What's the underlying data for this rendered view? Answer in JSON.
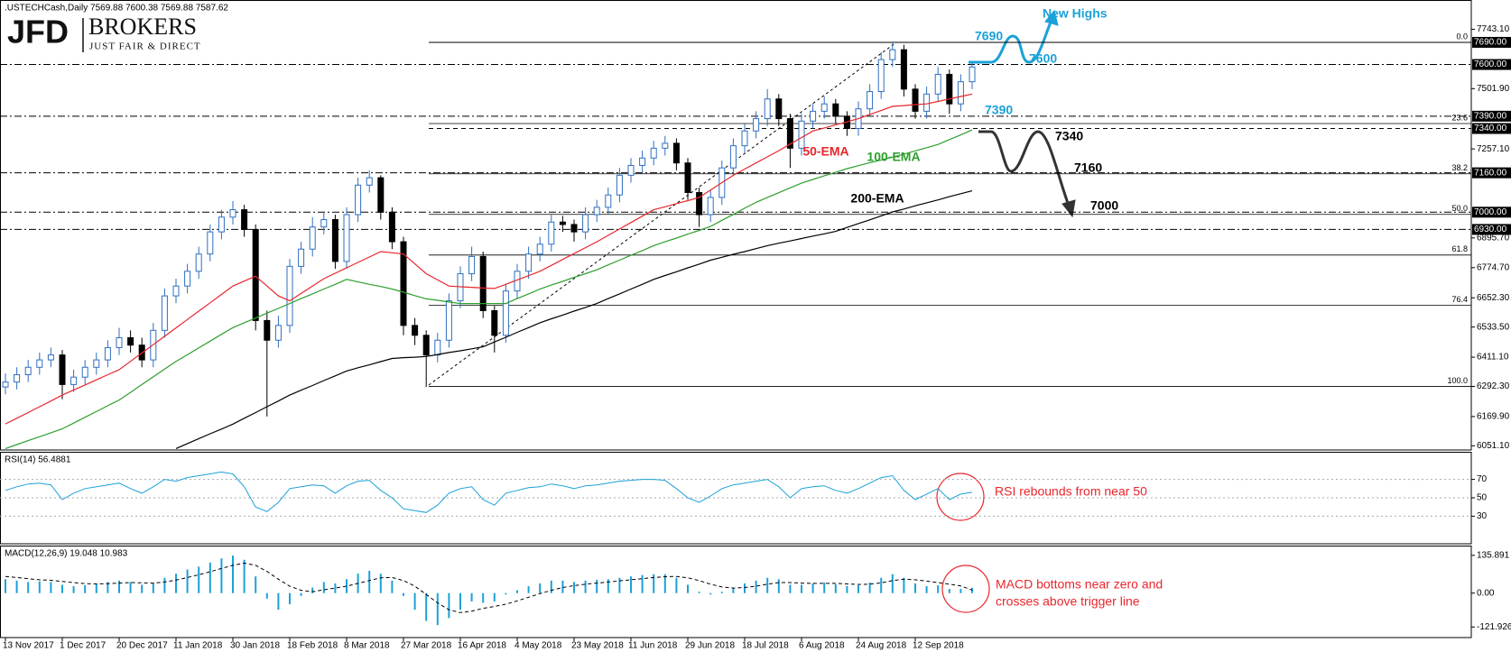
{
  "logo": {
    "mark": "JFD",
    "name": "BROKERS",
    "tagline": "JUST FAIR & DIRECT"
  },
  "chart_data": [
    {
      "type": "candlestick",
      "title": ".USTECHCash,Daily  7569.88 7600.38 7569.88 7587.62",
      "up_color": "#2f6fc0",
      "down_color": "#000000",
      "grid": false,
      "ylim": [
        6034,
        7862
      ],
      "yticks": [
        {
          "value": 7743.1,
          "label": "7743.10"
        },
        {
          "value": 7501.9,
          "label": "7501.90"
        },
        {
          "value": 7257.1,
          "label": "7257.10"
        },
        {
          "value": 6895.7,
          "label": "6895.70"
        },
        {
          "value": 6774.7,
          "label": "6774.70"
        },
        {
          "value": 6652.3,
          "label": "6652.30"
        },
        {
          "value": 6533.5,
          "label": "6533.50"
        },
        {
          "value": 6411.1,
          "label": "6411.10"
        },
        {
          "value": 6292.3,
          "label": "6292.30"
        },
        {
          "value": 6169.9,
          "label": "6169.90"
        },
        {
          "value": 6051.1,
          "label": "6051.10"
        }
      ],
      "categories": [
        "13 Nov 2017",
        null,
        null,
        null,
        null,
        "1 Dec 2017",
        null,
        null,
        null,
        null,
        "20 Dec 2017",
        null,
        null,
        null,
        null,
        "11 Jan 2018",
        null,
        null,
        null,
        null,
        "30 Jan 2018",
        null,
        null,
        null,
        null,
        "18 Feb 2018",
        null,
        null,
        null,
        null,
        "8 Mar 2018",
        null,
        null,
        null,
        null,
        "27 Mar 2018",
        null,
        null,
        null,
        null,
        "16 Apr 2018",
        null,
        null,
        null,
        null,
        "4 May 2018",
        null,
        null,
        null,
        null,
        "23 May 2018",
        null,
        null,
        null,
        null,
        "11 Jun 2018",
        null,
        null,
        null,
        null,
        "29 Jun 2018",
        null,
        null,
        null,
        null,
        "18 Jul 2018",
        null,
        null,
        null,
        null,
        "6 Aug 2018",
        null,
        null,
        null,
        null,
        "24 Aug 2018",
        null,
        null,
        null,
        null,
        "12 Sep 2018",
        null,
        null,
        null,
        null,
        null
      ],
      "open": [
        6290,
        6310,
        6340,
        6370,
        6400,
        6420,
        6300,
        6330,
        6370,
        6400,
        6450,
        6490,
        6460,
        6400,
        6520,
        6660,
        6700,
        6760,
        6830,
        6920,
        6980,
        7010,
        6930,
        6560,
        6480,
        6540,
        6780,
        6850,
        6940,
        6970,
        6800,
        6990,
        7110,
        7140,
        7000,
        6880,
        6540,
        6500,
        6420,
        6480,
        6640,
        6750,
        6820,
        6600,
        6500,
        6680,
        6760,
        6830,
        6870,
        6960,
        6950,
        6920,
        6990,
        7020,
        7070,
        7150,
        7190,
        7220,
        7260,
        7280,
        7200,
        7080,
        6990,
        7060,
        7180,
        7270,
        7330,
        7380,
        7460,
        7380,
        7260,
        7370,
        7410,
        7440,
        7390,
        7340,
        7420,
        7490,
        7620,
        7660,
        7500,
        7410,
        7480,
        7560,
        7440,
        7530
      ],
      "high": [
        6345,
        6370,
        6400,
        6430,
        6450,
        6440,
        6360,
        6400,
        6430,
        6480,
        6530,
        6520,
        6490,
        6550,
        6690,
        6730,
        6790,
        6860,
        6950,
        7010,
        7045,
        7030,
        6950,
        6600,
        6580,
        6810,
        6880,
        6980,
        7000,
        6990,
        7020,
        7140,
        7170,
        7150,
        7020,
        6900,
        6570,
        6520,
        6510,
        6670,
        6780,
        6860,
        6840,
        6620,
        6710,
        6790,
        6860,
        6900,
        6990,
        6985,
        6970,
        7020,
        7050,
        7100,
        7180,
        7220,
        7250,
        7290,
        7310,
        7300,
        7220,
        7100,
        7090,
        7210,
        7300,
        7360,
        7410,
        7500,
        7480,
        7400,
        7400,
        7440,
        7470,
        7460,
        7410,
        7450,
        7520,
        7650,
        7690,
        7680,
        7520,
        7510,
        7590,
        7580,
        7560,
        7605
      ],
      "low": [
        6260,
        6280,
        6310,
        6340,
        6370,
        6240,
        6270,
        6300,
        6340,
        6370,
        6420,
        6430,
        6370,
        6370,
        6490,
        6630,
        6670,
        6730,
        6800,
        6890,
        6950,
        6900,
        6520,
        6170,
        6450,
        6510,
        6750,
        6820,
        6910,
        6770,
        6770,
        6960,
        7080,
        6970,
        6850,
        6500,
        6460,
        6290,
        6390,
        6450,
        6610,
        6720,
        6570,
        6430,
        6470,
        6650,
        6730,
        6800,
        6840,
        6920,
        6880,
        6890,
        6960,
        6990,
        7040,
        7120,
        7160,
        7190,
        7230,
        7170,
        7050,
        6940,
        6960,
        7030,
        7150,
        7240,
        7300,
        7350,
        7350,
        7180,
        7230,
        7340,
        7380,
        7360,
        7310,
        7310,
        7390,
        7460,
        7590,
        7470,
        7380,
        7380,
        7450,
        7400,
        7410,
        7500
      ],
      "close": [
        6310,
        6340,
        6370,
        6400,
        6420,
        6300,
        6330,
        6370,
        6400,
        6450,
        6490,
        6460,
        6400,
        6520,
        6660,
        6700,
        6760,
        6830,
        6920,
        6980,
        7010,
        6930,
        6560,
        6480,
        6540,
        6780,
        6850,
        6940,
        6970,
        6800,
        6990,
        7110,
        7140,
        7000,
        6880,
        6540,
        6500,
        6420,
        6480,
        6640,
        6750,
        6820,
        6600,
        6500,
        6680,
        6760,
        6830,
        6870,
        6960,
        6950,
        6920,
        6990,
        7020,
        7070,
        7150,
        7190,
        7220,
        7260,
        7280,
        7200,
        7080,
        6990,
        7060,
        7180,
        7270,
        7330,
        7380,
        7460,
        7380,
        7260,
        7370,
        7410,
        7440,
        7390,
        7340,
        7420,
        7490,
        7620,
        7660,
        7500,
        7410,
        7480,
        7560,
        7440,
        7530,
        7590
      ],
      "series": [
        {
          "name": "50-EMA",
          "color": "#e8262c",
          "values": [
            6140,
            6163,
            6186,
            6210,
            6233,
            6257,
            6278,
            6298,
            6319,
            6340,
            6360,
            6394,
            6428,
            6462,
            6496,
            6530,
            6564,
            6598,
            6632,
            6666,
            6700,
            6720,
            6740,
            6700,
            6660,
            6640,
            6670,
            6700,
            6730,
            6752,
            6774,
            6796,
            6818,
            6840,
            6835,
            6830,
            6790,
            6750,
            6725,
            6700,
            6697,
            6695,
            6692,
            6690,
            6707,
            6725,
            6742,
            6760,
            6784,
            6808,
            6832,
            6856,
            6880,
            6906,
            6932,
            6958,
            6984,
            7010,
            7022,
            7035,
            7047,
            7060,
            7090,
            7120,
            7150,
            7175,
            7200,
            7225,
            7250,
            7277,
            7303,
            7330,
            7342,
            7355,
            7367,
            7380,
            7397,
            7413,
            7430,
            7433,
            7437,
            7440,
            7450,
            7460,
            7470,
            7480
          ]
        },
        {
          "name": "100-EMA",
          "color": "#2e9e2e",
          "values": [
            6040,
            6056,
            6072,
            6088,
            6104,
            6120,
            6143,
            6167,
            6190,
            6214,
            6237,
            6268,
            6300,
            6331,
            6363,
            6394,
            6421,
            6449,
            6476,
            6504,
            6531,
            6551,
            6570,
            6590,
            6609,
            6629,
            6649,
            6668,
            6688,
            6707,
            6727,
            6717,
            6707,
            6698,
            6688,
            6675,
            6661,
            6648,
            6642,
            6635,
            6629,
            6629,
            6629,
            6629,
            6629,
            6649,
            6668,
            6688,
            6704,
            6719,
            6735,
            6750,
            6766,
            6786,
            6805,
            6825,
            6844,
            6864,
            6880,
            6895,
            6911,
            6926,
            6942,
            6967,
            6991,
            7016,
            7040,
            7060,
            7079,
            7099,
            7118,
            7133,
            7148,
            7162,
            7177,
            7189,
            7201,
            7212,
            7224,
            7236,
            7249,
            7262,
            7275,
            7295,
            7314,
            7334
          ]
        },
        {
          "name": "200-EMA",
          "color": "#000000",
          "values": [
            null,
            null,
            null,
            null,
            null,
            null,
            null,
            null,
            null,
            null,
            null,
            null,
            null,
            null,
            null,
            6040,
            6060,
            6080,
            6100,
            6119,
            6139,
            6163,
            6186,
            6210,
            6233,
            6257,
            6277,
            6296,
            6316,
            6335,
            6355,
            6368,
            6380,
            6393,
            6406,
            6409,
            6411,
            6414,
            6422,
            6430,
            6437,
            6445,
            6453,
            6473,
            6492,
            6512,
            6531,
            6551,
            6567,
            6582,
            6598,
            6613,
            6629,
            6649,
            6668,
            6688,
            6707,
            6727,
            6743,
            6758,
            6774,
            6789,
            6805,
            6817,
            6829,
            6840,
            6852,
            6864,
            6874,
            6883,
            6893,
            6903,
            6912,
            6922,
            6938,
            6954,
            6969,
            6985,
            7001,
            7013,
            7026,
            7038,
            7050,
            7063,
            7075,
            7087
          ]
        }
      ],
      "levels": [
        {
          "value": 7690,
          "label": "7690.00",
          "style": "solid"
        },
        {
          "value": 7600,
          "label": "7600.00",
          "style": "dashdot"
        },
        {
          "value": 7390,
          "label": "7390.00",
          "style": "dashdot"
        },
        {
          "value": 7340,
          "label": "7340.00",
          "style": "dashed"
        },
        {
          "value": 7160,
          "label": "7160.00",
          "style": "dashdot"
        },
        {
          "value": 7000,
          "label": "7000.00",
          "style": "dashdot"
        },
        {
          "value": 6930,
          "label": "6930.00",
          "style": "dashdot"
        }
      ],
      "fib": [
        {
          "value": 7690,
          "label": "0.0"
        },
        {
          "value": 7360,
          "label": "23.6"
        },
        {
          "value": 7156,
          "label": "38.2"
        },
        {
          "value": 6991,
          "label": "50.0"
        },
        {
          "value": 6826,
          "label": "61.8"
        },
        {
          "value": 6622,
          "label": "76.4"
        },
        {
          "value": 6292,
          "label": "100.0"
        }
      ],
      "annotations": [
        {
          "text": "7690",
          "color": "#1ba1d8"
        },
        {
          "text": "New Highs",
          "color": "#1ba1d8"
        },
        {
          "text": "7600",
          "color": "#1ba1d8"
        },
        {
          "text": "7390",
          "color": "#1ba1d8"
        },
        {
          "text": "7340",
          "color": "#000000"
        },
        {
          "text": "7160",
          "color": "#000000"
        },
        {
          "text": "7000",
          "color": "#000000"
        }
      ]
    },
    {
      "type": "line",
      "title": "RSI(14) 56.4881",
      "color": "#1ba1d8",
      "ylim": [
        0,
        100
      ],
      "yticks": [
        30,
        50,
        70
      ],
      "values": [
        58,
        62,
        65,
        66,
        64,
        48,
        55,
        60,
        62,
        64,
        66,
        60,
        55,
        62,
        70,
        68,
        72,
        74,
        76,
        78,
        76,
        62,
        40,
        35,
        45,
        60,
        62,
        64,
        63,
        55,
        63,
        68,
        69,
        58,
        50,
        38,
        36,
        34,
        42,
        55,
        60,
        62,
        48,
        42,
        55,
        58,
        61,
        62,
        65,
        63,
        60,
        63,
        64,
        66,
        68,
        69,
        70,
        70,
        69,
        60,
        50,
        45,
        52,
        60,
        64,
        66,
        68,
        70,
        62,
        50,
        60,
        62,
        63,
        58,
        55,
        60,
        66,
        72,
        74,
        58,
        48,
        54,
        60,
        48,
        54,
        56
      ],
      "annotation": "RSI rebounds from near 50",
      "annotation_color": "#e8262c"
    },
    {
      "type": "macd",
      "title": "MACD(12,26,9) 19.048 10.983",
      "color": "#1ba1d8",
      "signal_color": "#000000",
      "ylim": [
        -160,
        171
      ],
      "yticks": [
        135.891,
        {
          "value": 0,
          "label": "0.00"
        },
        -121.926
      ],
      "values": [
        50,
        45,
        40,
        42,
        40,
        30,
        25,
        28,
        32,
        40,
        45,
        40,
        30,
        35,
        55,
        70,
        85,
        95,
        110,
        125,
        135,
        120,
        60,
        -20,
        -60,
        -40,
        -10,
        20,
        40,
        35,
        50,
        70,
        80,
        70,
        45,
        -10,
        -60,
        -100,
        -115,
        -90,
        -60,
        -30,
        -35,
        -30,
        -5,
        10,
        25,
        35,
        45,
        45,
        40,
        45,
        48,
        50,
        55,
        60,
        65,
        68,
        68,
        55,
        30,
        5,
        -5,
        5,
        20,
        35,
        45,
        55,
        50,
        30,
        30,
        35,
        38,
        32,
        25,
        28,
        38,
        55,
        68,
        55,
        35,
        25,
        28,
        15,
        15,
        19
      ],
      "signal": [
        60,
        56,
        52,
        48,
        46,
        42,
        38,
        34,
        33,
        34,
        36,
        38,
        37,
        36,
        40,
        47,
        56,
        66,
        77,
        89,
        100,
        108,
        100,
        78,
        50,
        25,
        10,
        5,
        12,
        18,
        25,
        35,
        45,
        55,
        56,
        45,
        25,
        -5,
        -35,
        -60,
        -70,
        -65,
        -55,
        -48,
        -40,
        -28,
        -15,
        -2,
        10,
        20,
        27,
        32,
        36,
        40,
        44,
        48,
        52,
        56,
        59,
        60,
        55,
        45,
        32,
        22,
        18,
        20,
        25,
        32,
        38,
        38,
        36,
        35,
        35,
        35,
        33,
        31,
        32,
        37,
        45,
        50,
        48,
        43,
        38,
        32,
        26,
        11
      ],
      "annotation": [
        "MACD bottoms near zero and",
        "crosses above trigger line"
      ],
      "annotation_color": "#e8262c"
    }
  ]
}
